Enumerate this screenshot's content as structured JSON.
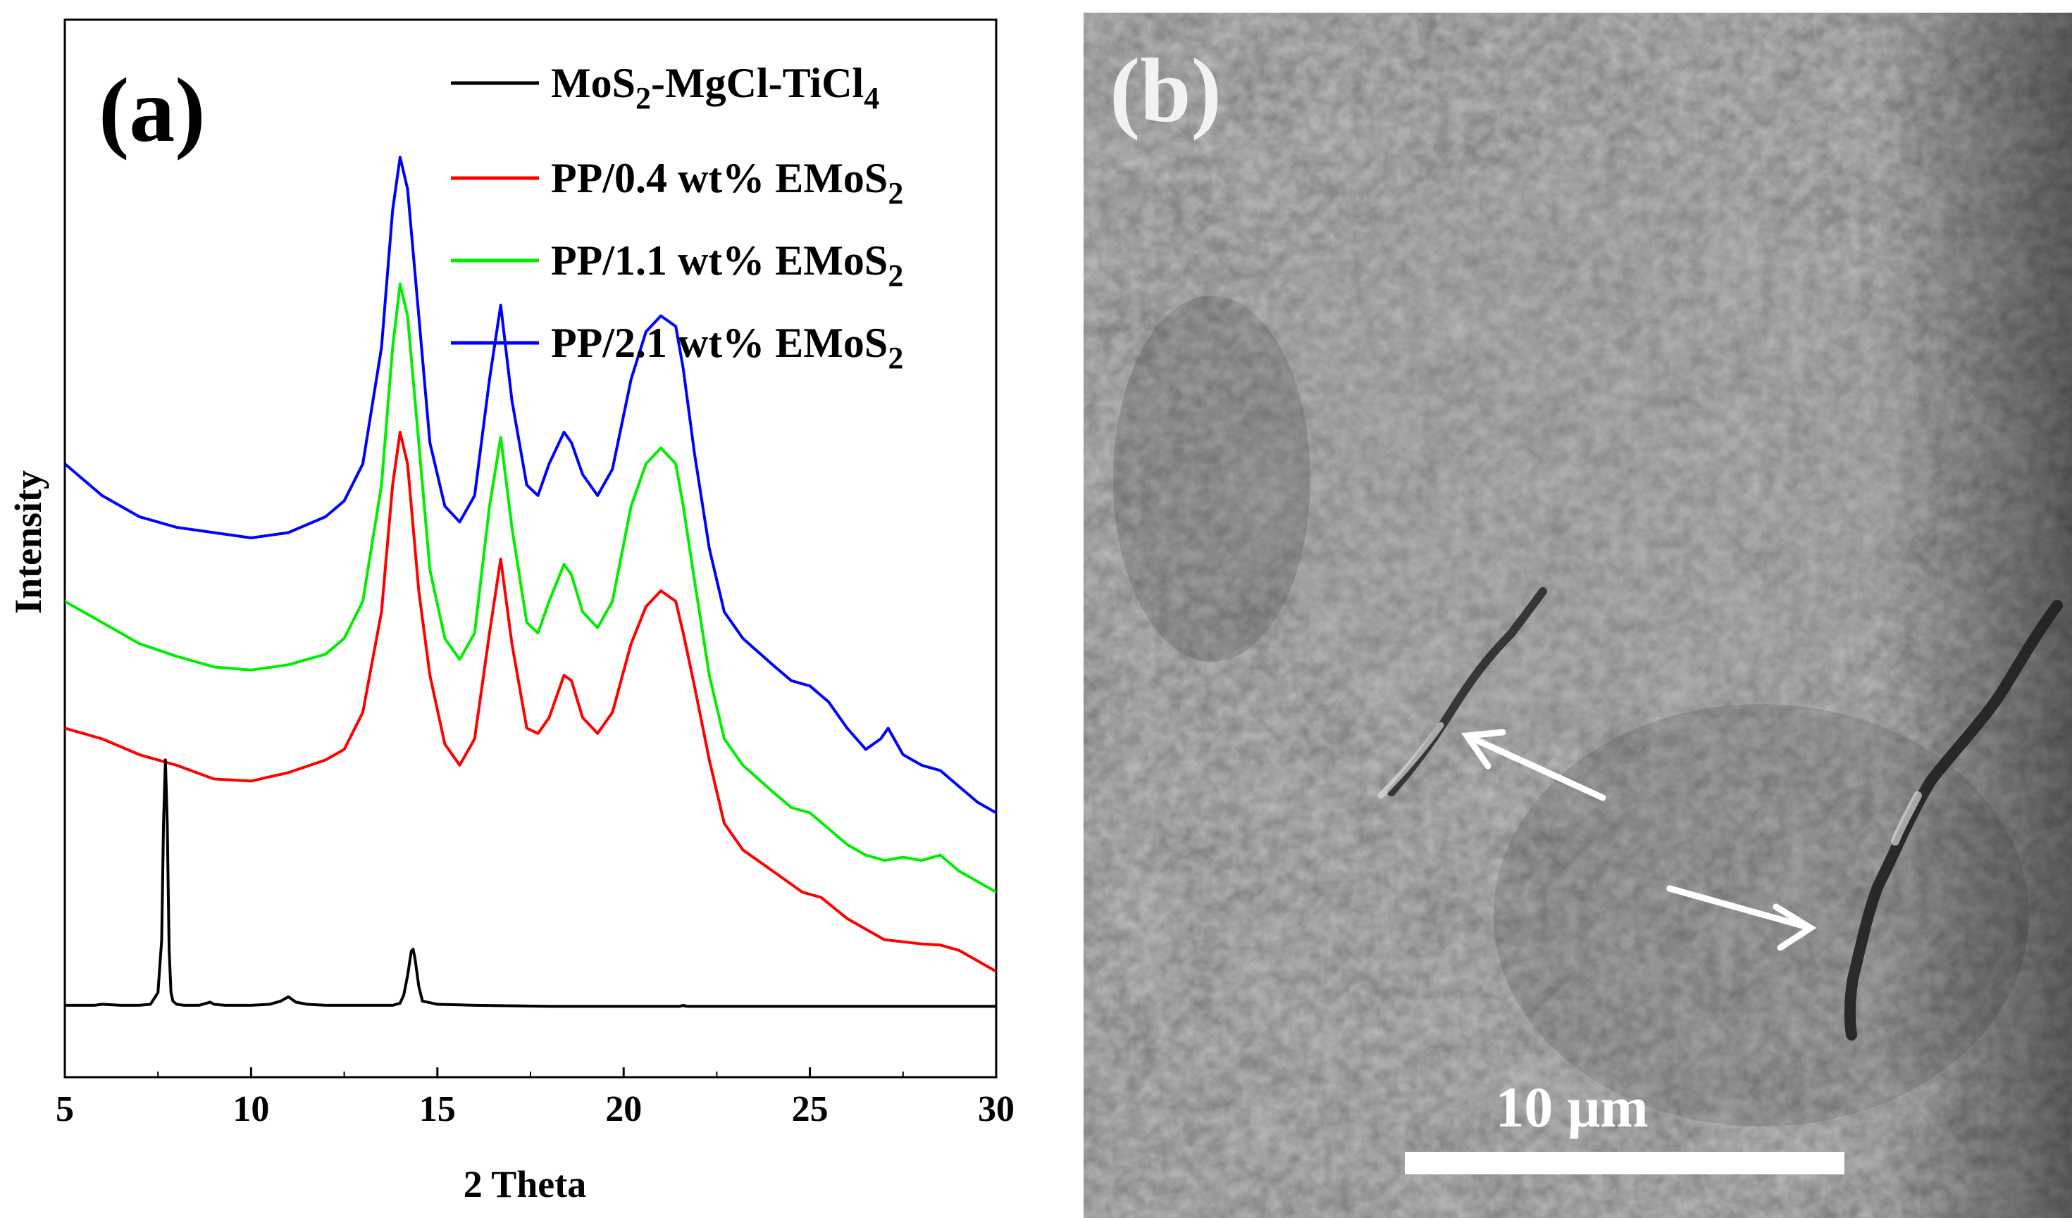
{
  "panel_a": {
    "label": "(a)",
    "chart_data": {
      "type": "line",
      "title": "",
      "xlabel": "2 Theta",
      "ylabel": "Intensity",
      "xlim": [
        5,
        30
      ],
      "ylim": [
        0,
        100
      ],
      "xticks": [
        5,
        10,
        15,
        20,
        25,
        30
      ],
      "legend_position": "top-right",
      "series": [
        {
          "name": "MoS2-MgCl-TiCl4",
          "legend_parts": [
            [
              "MoS",
              "n"
            ],
            [
              "2",
              "sub"
            ],
            [
              "-MgCl-TiCl",
              "n"
            ],
            [
              "4",
              "sub"
            ]
          ],
          "color": "#000000",
          "x": [
            5,
            5.8,
            6,
            6.5,
            7,
            7.3,
            7.5,
            7.6,
            7.65,
            7.7,
            7.75,
            7.8,
            7.85,
            7.9,
            8.0,
            8.2,
            8.6,
            8.9,
            9.0,
            9.3,
            10,
            10.5,
            10.8,
            11.0,
            11.2,
            11.5,
            12,
            13,
            13.8,
            14.0,
            14.1,
            14.2,
            14.3,
            14.35,
            14.4,
            14.5,
            14.6,
            15,
            16,
            18,
            21.5,
            21.6,
            21.7,
            23,
            25,
            28,
            30
          ],
          "y": [
            6.8,
            6.8,
            6.9,
            6.8,
            6.8,
            6.9,
            8,
            13,
            24,
            30,
            24,
            12,
            8,
            7.2,
            6.9,
            6.8,
            6.8,
            7.1,
            6.9,
            6.8,
            6.8,
            6.9,
            7.2,
            7.6,
            7.1,
            6.9,
            6.8,
            6.8,
            6.8,
            7,
            7.8,
            9.6,
            11.9,
            12.1,
            11.2,
            8.6,
            7.2,
            6.9,
            6.8,
            6.7,
            6.7,
            6.8,
            6.7,
            6.7,
            6.7,
            6.7,
            6.7
          ]
        },
        {
          "name": "PP/0.4 wt% EMoS2",
          "legend_parts": [
            [
              "PP/0.4  wt% EMoS",
              "n"
            ],
            [
              "2",
              "sub"
            ]
          ],
          "color": "#ff0000",
          "x": [
            5,
            6,
            7,
            8,
            9,
            10,
            11,
            12,
            12.5,
            13,
            13.5,
            13.8,
            14,
            14.2,
            14.5,
            14.8,
            15.2,
            15.6,
            16,
            16.4,
            16.7,
            17,
            17.4,
            17.7,
            18,
            18.4,
            18.6,
            18.9,
            19.3,
            19.7,
            20.2,
            20.6,
            21,
            21.4,
            21.6,
            21.9,
            22.3,
            22.7,
            23.2,
            24,
            24.8,
            25.3,
            26,
            26.5,
            27,
            28,
            28.5,
            29,
            29.5,
            30
          ],
          "y": [
            33,
            32,
            30.5,
            29.5,
            28.2,
            28,
            28.8,
            30,
            31,
            34.5,
            44,
            56,
            61,
            58,
            46,
            38,
            31.5,
            29.5,
            32,
            42,
            49,
            41,
            33,
            32.5,
            34,
            38,
            37.5,
            34,
            32.5,
            34.5,
            41,
            44.5,
            46,
            45,
            42,
            37,
            30,
            24,
            21.5,
            19.5,
            17.5,
            17,
            15,
            14,
            13,
            12.6,
            12.5,
            12,
            11,
            10
          ]
        },
        {
          "name": "PP/1.1 wt% EMoS2",
          "legend_parts": [
            [
              "PP/1.1  wt% EMoS",
              "n"
            ],
            [
              "2",
              "sub"
            ]
          ],
          "color": "#00ee00",
          "x": [
            5,
            6,
            7,
            8,
            9,
            10,
            11,
            12,
            12.5,
            13,
            13.5,
            13.8,
            14,
            14.2,
            14.5,
            14.8,
            15.2,
            15.6,
            16,
            16.4,
            16.7,
            17,
            17.4,
            17.7,
            18,
            18.4,
            18.6,
            18.9,
            19.3,
            19.7,
            20.2,
            20.6,
            21,
            21.4,
            21.6,
            21.9,
            22.3,
            22.7,
            23.2,
            24,
            24.5,
            25,
            25.5,
            26,
            26.5,
            27,
            27.5,
            28,
            28.5,
            29,
            29.5,
            30
          ],
          "y": [
            45,
            43,
            41,
            39.8,
            38.8,
            38.5,
            39,
            40,
            41.5,
            45,
            56,
            69,
            75,
            72,
            60,
            48,
            41.5,
            39.5,
            42,
            54,
            60.5,
            52,
            43,
            42,
            45,
            48.5,
            47.5,
            44,
            42.5,
            45,
            54,
            58,
            59.5,
            58,
            54,
            47,
            38,
            32,
            29.5,
            27,
            25.5,
            25,
            23.5,
            22,
            21,
            20.5,
            20.8,
            20.5,
            21,
            19.5,
            18.5,
            17.5
          ]
        },
        {
          "name": "PP/2.1 wt% EMoS2",
          "legend_parts": [
            [
              "PP/2.1  wt% EMoS",
              "n"
            ],
            [
              "2",
              "sub"
            ]
          ],
          "color": "#0000ff",
          "x": [
            5,
            6,
            7,
            8,
            9,
            10,
            11,
            12,
            12.5,
            13,
            13.5,
            13.8,
            14,
            14.2,
            14.5,
            14.8,
            15.2,
            15.6,
            16,
            16.4,
            16.7,
            17,
            17.4,
            17.7,
            18,
            18.4,
            18.6,
            18.9,
            19.3,
            19.7,
            20.2,
            20.6,
            21,
            21.4,
            21.6,
            21.9,
            22.3,
            22.7,
            23.2,
            24,
            24.5,
            25,
            25.5,
            26,
            26.5,
            26.9,
            27.1,
            27.5,
            28,
            28.5,
            29,
            29.5,
            30
          ],
          "y": [
            58,
            55,
            53,
            52,
            51.5,
            51,
            51.5,
            53,
            54.5,
            58,
            69,
            82,
            87,
            84,
            72,
            60,
            54,
            52.5,
            55,
            66,
            73,
            64,
            56,
            55,
            58,
            61,
            60,
            57,
            55,
            57.5,
            66,
            70.5,
            72,
            71,
            67,
            59,
            50,
            44,
            41.5,
            39,
            37.5,
            37,
            35.5,
            33,
            31,
            32,
            33,
            30.5,
            29.5,
            29,
            27.5,
            26,
            25
          ]
        }
      ]
    }
  },
  "panel_b": {
    "label": "(b)",
    "scale_bar_label": "10 μm"
  }
}
